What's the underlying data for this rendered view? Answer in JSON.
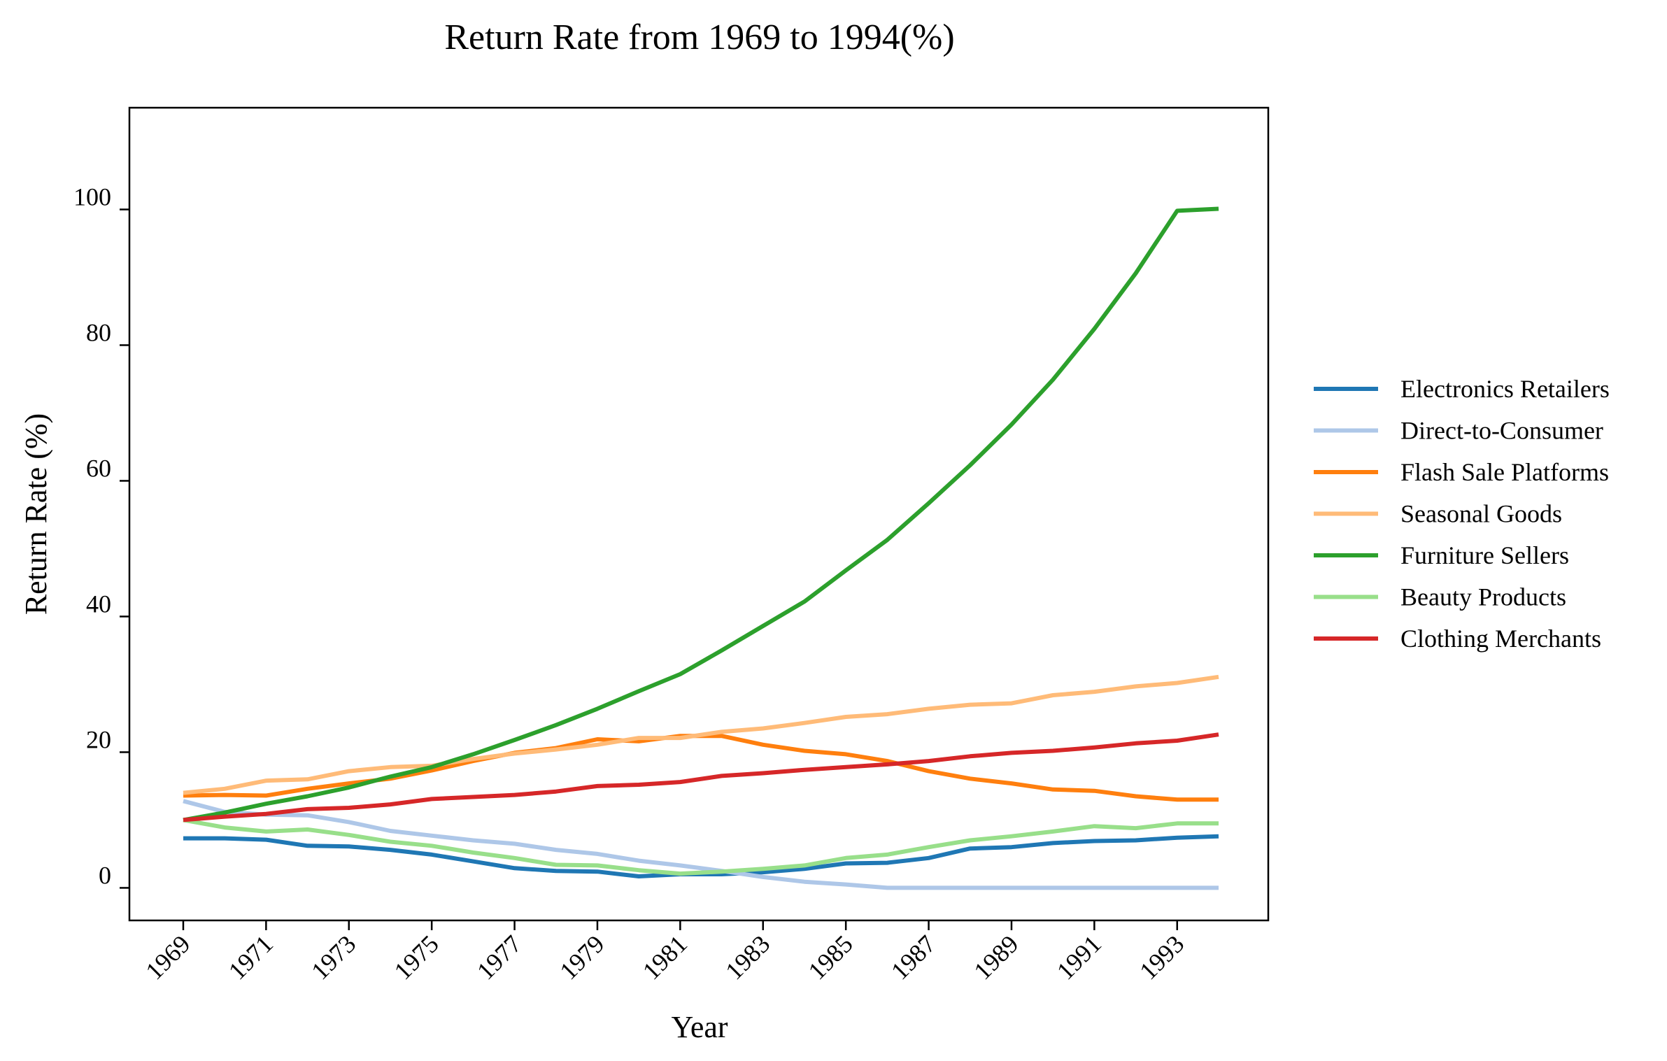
{
  "chart_data": {
    "type": "line",
    "title": "Return Rate from 1969 to 1994(%)",
    "xlabel": "Year",
    "ylabel": "Return Rate (%)",
    "x": [
      1969,
      1970,
      1971,
      1972,
      1973,
      1974,
      1975,
      1976,
      1977,
      1978,
      1979,
      1980,
      1981,
      1982,
      1983,
      1984,
      1985,
      1986,
      1987,
      1988,
      1989,
      1990,
      1991,
      1992,
      1993,
      1994
    ],
    "x_tick_labels": [
      "1969",
      "1971",
      "1973",
      "1975",
      "1977",
      "1979",
      "1981",
      "1983",
      "1985",
      "1987",
      "1989",
      "1991",
      "1993"
    ],
    "y_tick_labels": [
      "0",
      "20",
      "40",
      "60",
      "80",
      "100"
    ],
    "xlim": [
      1967.7,
      1995.2
    ],
    "ylim": [
      -4.8,
      115
    ],
    "grid": false,
    "legend_position": "right",
    "series": [
      {
        "name": "Electronics Retailers",
        "color": "#1f77b4",
        "values": [
          7.3,
          7.3,
          7.1,
          6.2,
          6.1,
          5.6,
          4.9,
          3.9,
          2.9,
          2.5,
          2.4,
          1.7,
          2.0,
          2.0,
          2.3,
          2.8,
          3.6,
          3.7,
          4.4,
          5.8,
          6.0,
          6.6,
          6.9,
          7.0,
          7.4,
          7.6
        ]
      },
      {
        "name": "Direct-to-Consumer",
        "color": "#aec7e8",
        "values": [
          12.8,
          11.2,
          10.8,
          10.7,
          9.7,
          8.4,
          7.7,
          7.0,
          6.5,
          5.6,
          5.0,
          4.0,
          3.3,
          2.5,
          1.6,
          0.9,
          0.5,
          0,
          0,
          0,
          0,
          0,
          0,
          0,
          0,
          0
        ]
      },
      {
        "name": "Flash Sale Platforms",
        "color": "#ff7f0e",
        "values": [
          13.6,
          13.7,
          13.6,
          14.6,
          15.4,
          16.1,
          17.3,
          18.7,
          19.9,
          20.6,
          21.9,
          21.6,
          22.4,
          22.4,
          21.1,
          20.2,
          19.7,
          18.7,
          17.2,
          16.1,
          15.4,
          14.5,
          14.3,
          13.5,
          13.0,
          13.0
        ]
      },
      {
        "name": "Seasonal Goods",
        "color": "#ffbb78",
        "values": [
          14.0,
          14.6,
          15.8,
          16.0,
          17.2,
          17.8,
          18.0,
          19.0,
          19.8,
          20.4,
          21.1,
          22.1,
          22.1,
          23.0,
          23.5,
          24.3,
          25.2,
          25.6,
          26.4,
          27.0,
          27.2,
          28.4,
          28.9,
          29.7,
          30.2,
          31.1
        ]
      },
      {
        "name": "Furniture Sellers",
        "color": "#2ca02c",
        "values": [
          10.0,
          11.1,
          12.4,
          13.5,
          14.8,
          16.4,
          17.8,
          19.7,
          21.8,
          24.0,
          26.4,
          29.0,
          31.5,
          35.0,
          38.6,
          42.2,
          46.8,
          51.3,
          56.7,
          62.3,
          68.3,
          74.9,
          82.4,
          90.6,
          99.8,
          100.1
        ]
      },
      {
        "name": "Beauty Products",
        "color": "#98df8a",
        "values": [
          10.0,
          8.9,
          8.3,
          8.6,
          7.8,
          6.8,
          6.2,
          5.2,
          4.4,
          3.4,
          3.3,
          2.6,
          2.1,
          2.4,
          2.8,
          3.3,
          4.4,
          4.9,
          6.0,
          7.0,
          7.6,
          8.3,
          9.1,
          8.8,
          9.5,
          9.5
        ]
      },
      {
        "name": "Clothing Merchants",
        "color": "#d62728",
        "values": [
          10.0,
          10.5,
          10.9,
          11.6,
          11.8,
          12.3,
          13.1,
          13.4,
          13.7,
          14.2,
          15.0,
          15.2,
          15.6,
          16.5,
          16.9,
          17.4,
          17.8,
          18.2,
          18.7,
          19.4,
          19.9,
          20.2,
          20.7,
          21.3,
          21.7,
          22.6
        ]
      }
    ]
  }
}
